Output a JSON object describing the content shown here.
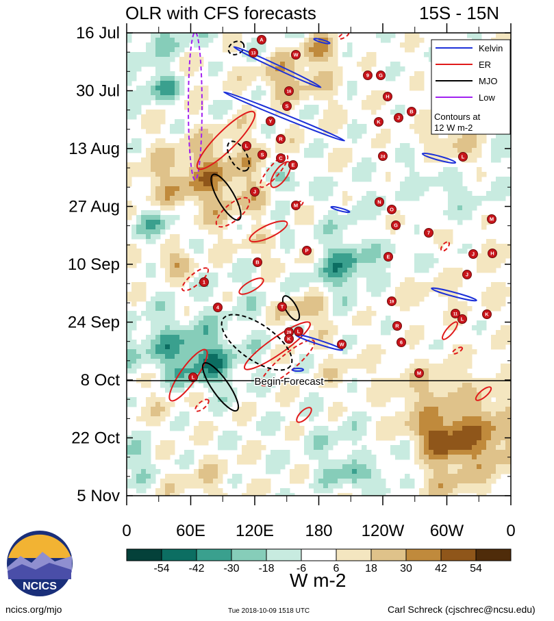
{
  "title": "OLR with CFS forecasts",
  "region": "15S - 15N",
  "chart_data": {
    "type": "heatmap",
    "title": "OLR with CFS forecasts",
    "region": "15S - 15N",
    "y_ticks": [
      "16 Jul",
      "30 Jul",
      "13 Aug",
      "27 Aug",
      "10 Sep",
      "24 Sep",
      "8 Oct",
      "22 Oct",
      "5 Nov"
    ],
    "x_ticks": [
      "0",
      "60E",
      "120E",
      "180",
      "120W",
      "60W",
      "0"
    ],
    "x_values": [
      0,
      60,
      120,
      180,
      240,
      300,
      360
    ],
    "forecast_line": {
      "date": "8 Oct",
      "label": "Begin Forecast"
    },
    "legend": [
      {
        "name": "Kelvin",
        "color": "#1c30d8"
      },
      {
        "name": "ER",
        "color": "#e01a1a"
      },
      {
        "name": "MJO",
        "color": "#000000"
      },
      {
        "name": "Low",
        "color": "#a020f0"
      }
    ],
    "contour_note": [
      "Contours at",
      "12 W m-2"
    ],
    "colorbar": {
      "levels": [
        "-54",
        "-42",
        "-30",
        "-18",
        "-6",
        "6",
        "18",
        "30",
        "42",
        "54"
      ],
      "colors": [
        "#04413a",
        "#0c6e62",
        "#3aa08e",
        "#86cdb9",
        "#c8ebe0",
        "#ffffff",
        "#f4e6c0",
        "#dfc28a",
        "#c08a3c",
        "#8f561a",
        "#4f2c0a"
      ],
      "units": "W m-2"
    },
    "storm_labels": [
      "A",
      "13",
      "W",
      "9",
      "G",
      "16",
      "H",
      "S",
      "Y",
      "K",
      "J",
      "B",
      "L",
      "R",
      "S",
      "C",
      "E",
      "L",
      "24",
      "J",
      "M",
      "N",
      "O",
      "G",
      "7",
      "M",
      "P",
      "E",
      "J",
      "H",
      "B",
      "1",
      "J",
      "19",
      "4",
      "T",
      "11",
      "L",
      "K",
      "R",
      "29",
      "L",
      "K",
      "W",
      "6",
      "L",
      "M"
    ]
  },
  "footer": {
    "left": "ncics.org/mjo",
    "mid": "Tue 2018-10-09 1518 UTC",
    "right": "Carl Schreck (cjschrec@ncsu.edu)"
  },
  "logo": {
    "text": "NCICS"
  }
}
